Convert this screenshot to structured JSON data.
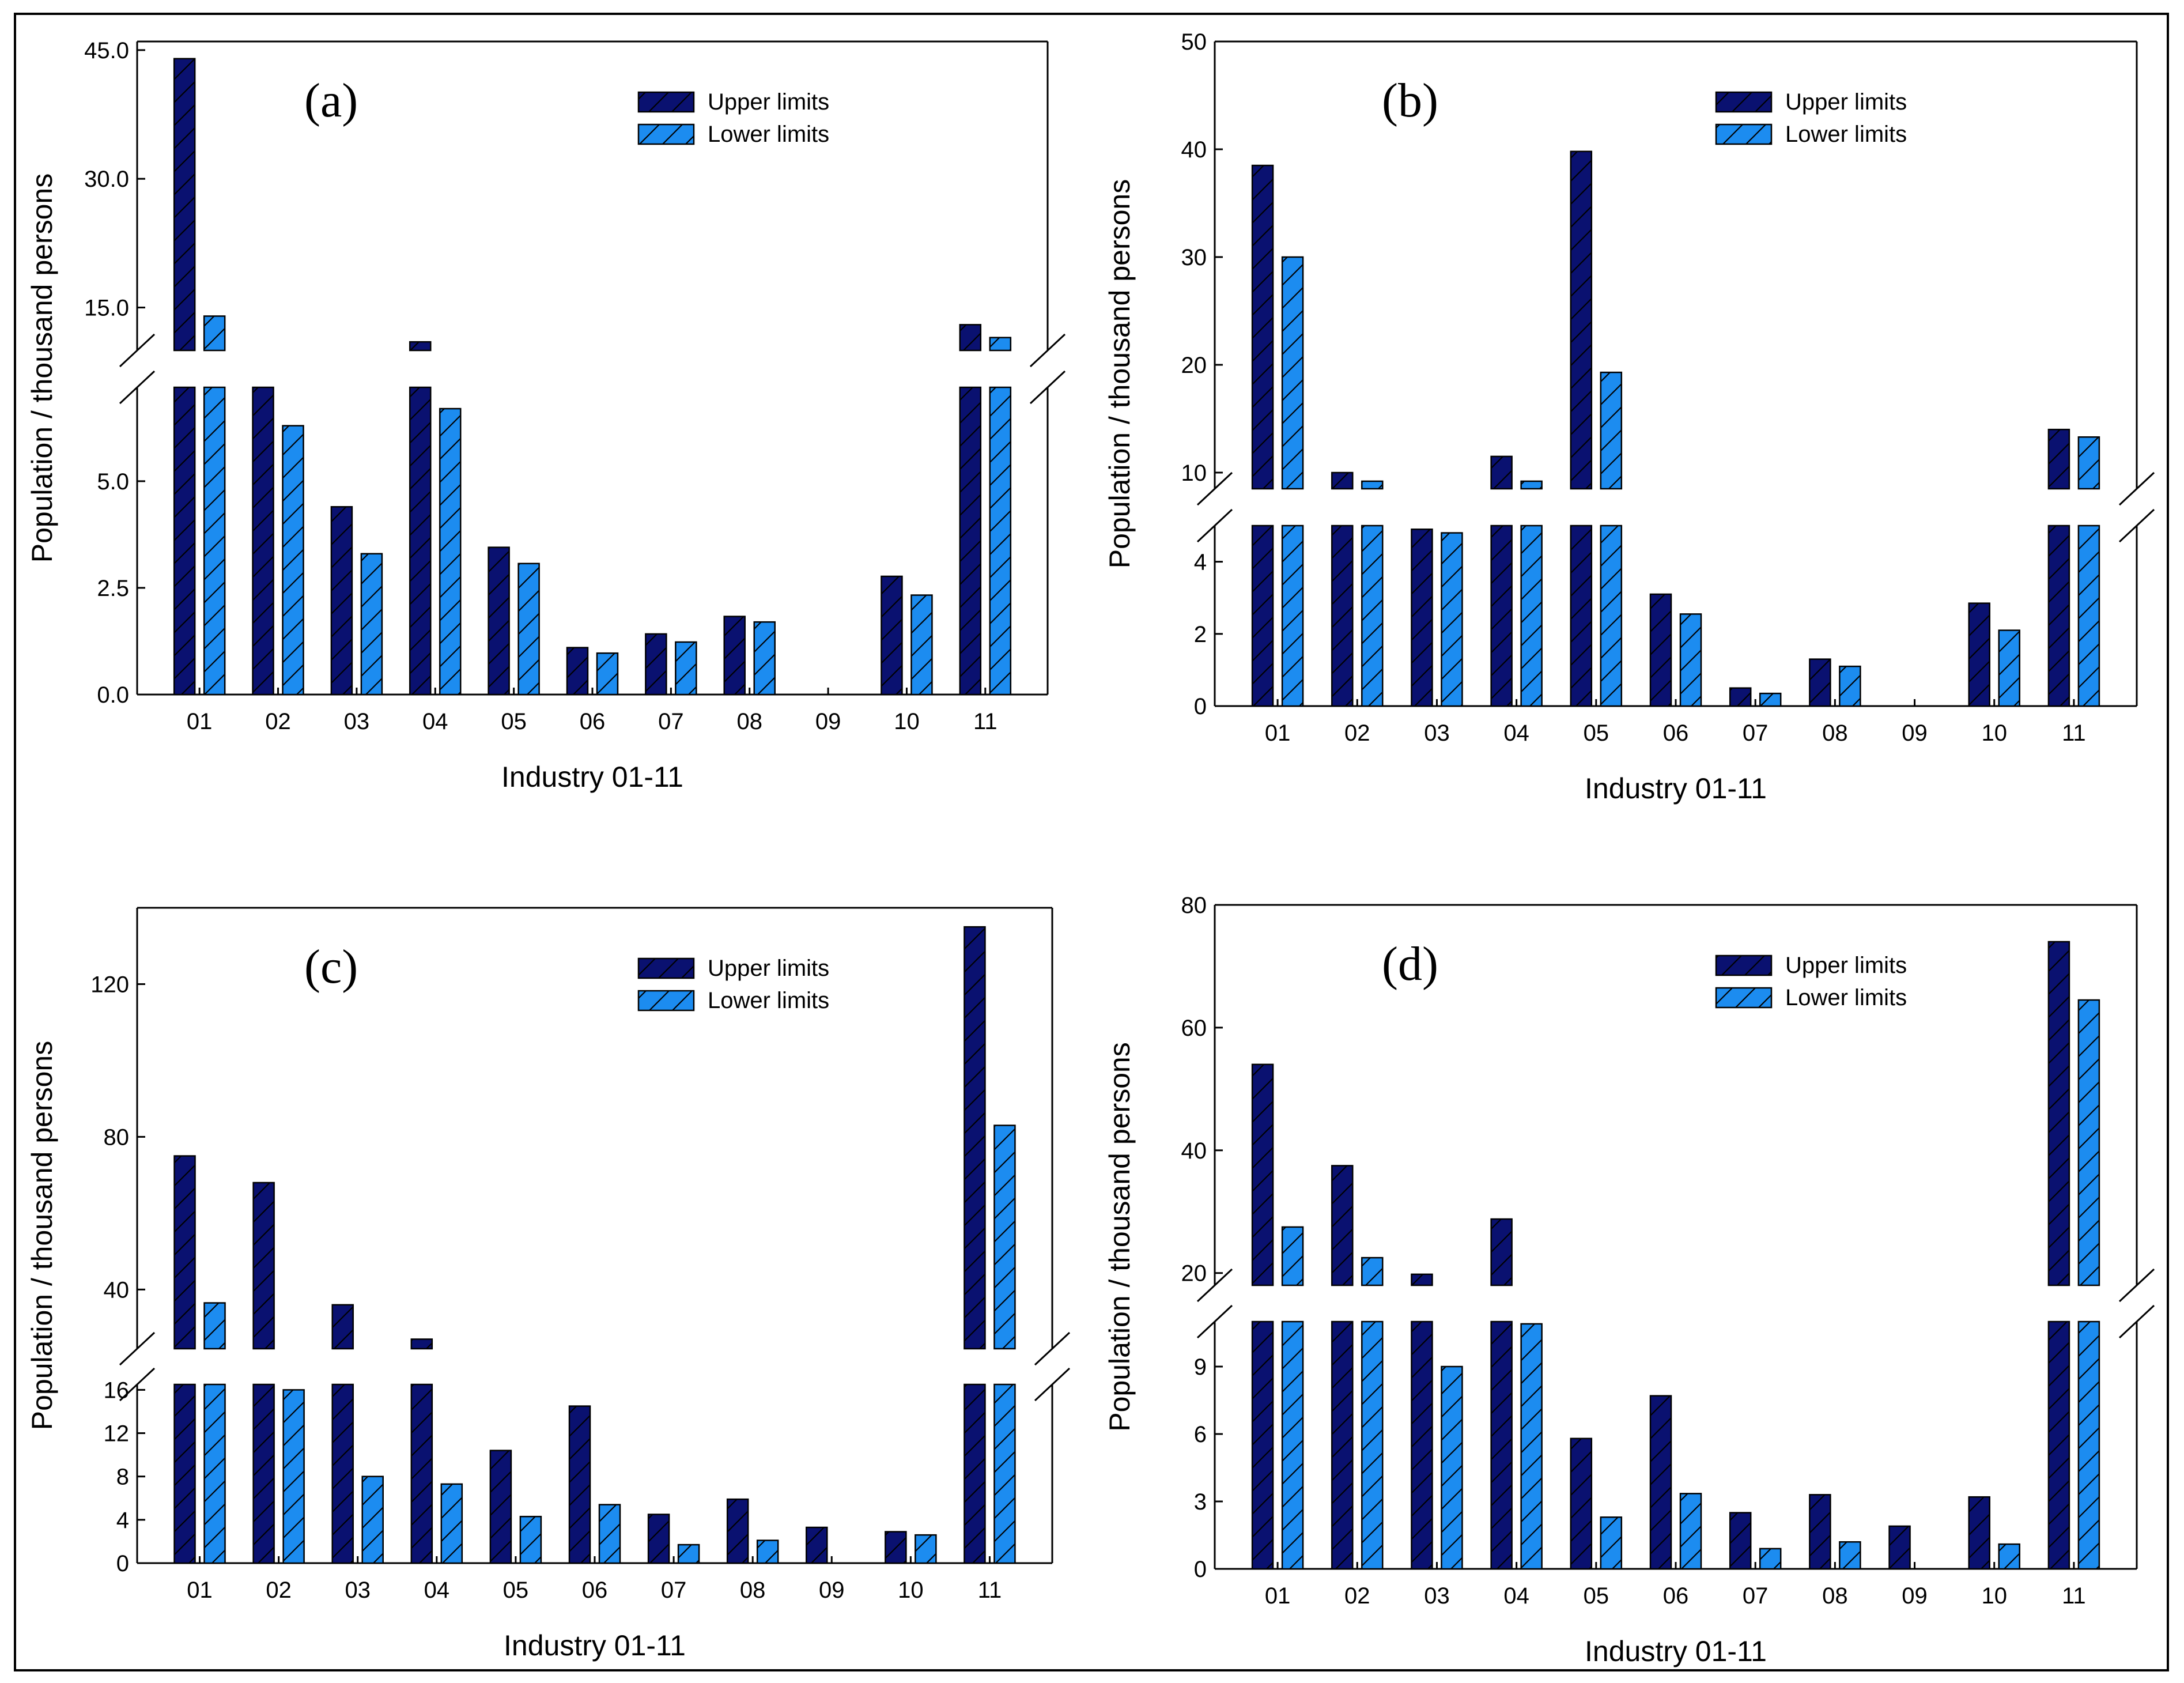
{
  "colors": {
    "upper": "#0a1170",
    "lower": "#1c8cf0",
    "hatch": "#000000",
    "axis": "#000000"
  },
  "legend": {
    "upper_label": "Upper limits",
    "lower_label": "Lower limits"
  },
  "chart_data": [
    {
      "type": "bar",
      "label": "(a)",
      "categories": [
        "01",
        "02",
        "03",
        "04",
        "05",
        "06",
        "07",
        "08",
        "09",
        "10",
        "11"
      ],
      "xlabel": "Industry 01-11",
      "ylabel": "Population / thousand persons",
      "broken_axis": true,
      "lower_segment": {
        "ylim": [
          0,
          7.2
        ],
        "ticks": [
          0,
          2.5,
          5
        ],
        "tick_labels": [
          "0.0",
          "2.5",
          "5.0"
        ]
      },
      "upper_segment": {
        "ylim": [
          10,
          46
        ],
        "ticks": [
          15,
          30,
          45
        ],
        "tick_labels": [
          "15.0",
          "30.0",
          "45.0"
        ]
      },
      "series": [
        {
          "name": "Upper limits",
          "values": [
            44,
            7.2,
            4.4,
            11,
            3.45,
            1.1,
            1.42,
            1.83,
            0,
            2.77,
            13
          ]
        },
        {
          "name": "Lower limits",
          "values": [
            14,
            6.3,
            3.3,
            6.7,
            3.07,
            0.97,
            1.23,
            1.7,
            0,
            2.33,
            11.5
          ]
        }
      ]
    },
    {
      "type": "bar",
      "label": "(b)",
      "categories": [
        "01",
        "02",
        "03",
        "04",
        "05",
        "06",
        "07",
        "08",
        "09",
        "10",
        "11"
      ],
      "xlabel": "Industry 01-11",
      "ylabel": "Population / thousand persons",
      "broken_axis": true,
      "lower_segment": {
        "ylim": [
          0,
          5
        ],
        "ticks": [
          0,
          2,
          4
        ],
        "tick_labels": [
          "0",
          "2",
          "4"
        ]
      },
      "upper_segment": {
        "ylim": [
          8.5,
          50
        ],
        "ticks": [
          10,
          20,
          30,
          40,
          50
        ],
        "tick_labels": [
          "10",
          "20",
          "30",
          "40",
          "50"
        ]
      },
      "series": [
        {
          "name": "Upper limits",
          "values": [
            38.5,
            10,
            4.9,
            11.5,
            39.8,
            3.1,
            0.5,
            1.3,
            0,
            2.85,
            14
          ]
        },
        {
          "name": "Lower limits",
          "values": [
            30,
            9.2,
            4.8,
            9.2,
            19.3,
            2.55,
            0.35,
            1.1,
            0,
            2.1,
            13.3
          ]
        }
      ]
    },
    {
      "type": "bar",
      "label": "(c)",
      "categories": [
        "01",
        "02",
        "03",
        "04",
        "05",
        "06",
        "07",
        "08",
        "09",
        "10",
        "11"
      ],
      "xlabel": "Industry 01-11",
      "ylabel": "Population / thousand persons",
      "broken_axis": true,
      "lower_segment": {
        "ylim": [
          0,
          16.5
        ],
        "ticks": [
          0,
          4,
          8,
          12,
          16
        ],
        "tick_labels": [
          "0",
          "4",
          "8",
          "12",
          "16"
        ]
      },
      "upper_segment": {
        "ylim": [
          24.5,
          140
        ],
        "ticks": [
          40,
          80,
          120
        ],
        "tick_labels": [
          "40",
          "80",
          "120"
        ]
      },
      "series": [
        {
          "name": "Upper limits",
          "values": [
            75,
            68,
            36,
            27,
            10.4,
            14.5,
            4.5,
            5.9,
            3.3,
            2.9,
            135
          ]
        },
        {
          "name": "Lower limits",
          "values": [
            36.5,
            16,
            8,
            7.3,
            4.3,
            5.4,
            1.7,
            2.1,
            0,
            2.6,
            83
          ]
        }
      ]
    },
    {
      "type": "bar",
      "label": "(d)",
      "categories": [
        "01",
        "02",
        "03",
        "04",
        "05",
        "06",
        "07",
        "08",
        "09",
        "10",
        "11"
      ],
      "xlabel": "Industry 01-11",
      "ylabel": "Population / thousand persons",
      "broken_axis": true,
      "lower_segment": {
        "ylim": [
          0,
          11
        ],
        "ticks": [
          0,
          3,
          6,
          9
        ],
        "tick_labels": [
          "0",
          "3",
          "6",
          "9"
        ]
      },
      "upper_segment": {
        "ylim": [
          18,
          80
        ],
        "ticks": [
          20,
          40,
          60,
          80
        ],
        "tick_labels": [
          "20",
          "40",
          "60",
          "80"
        ]
      },
      "series": [
        {
          "name": "Upper limits",
          "values": [
            54,
            37.5,
            19.8,
            28.8,
            5.8,
            7.7,
            2.5,
            3.3,
            1.9,
            3.2,
            74
          ]
        },
        {
          "name": "Lower limits",
          "values": [
            27.5,
            22.5,
            9,
            10.9,
            2.3,
            3.35,
            0.9,
            1.2,
            0,
            1.1,
            64.5
          ]
        }
      ]
    }
  ]
}
